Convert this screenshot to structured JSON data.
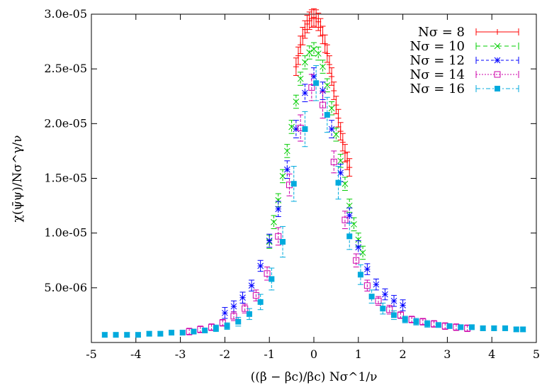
{
  "chart_data": {
    "type": "scatter",
    "title": "",
    "xlabel": "((β − βc)/βc) Nσ^1/ν",
    "ylabel": "χ(ψ̄ψ)/Nσ^γ/ν",
    "xlim": [
      -5,
      5
    ],
    "ylim": [
      0,
      3e-05
    ],
    "x_ticks": [
      "-5",
      "-4",
      "-3",
      "-2",
      "-1",
      "0",
      "1",
      "2",
      "3",
      "4",
      "5"
    ],
    "y_ticks": [
      "5.0e-06",
      "1.0e-05",
      "1.5e-05",
      "2.0e-05",
      "2.5e-05",
      "3.0e-05"
    ],
    "grid": false,
    "legend_position": "top-right",
    "series": [
      {
        "name": "Nσ = 8",
        "color": "#ff0000",
        "marker": "plus",
        "x": [
          -0.4,
          -0.35,
          -0.3,
          -0.25,
          -0.2,
          -0.15,
          -0.1,
          -0.05,
          0.0,
          0.05,
          0.1,
          0.15,
          0.2,
          0.25,
          0.3,
          0.35,
          0.4,
          0.45,
          0.5,
          0.55,
          0.6,
          0.65,
          0.7,
          0.75,
          0.8
        ],
        "y": [
          2.52e-05,
          2.62e-05,
          2.72e-05,
          2.8e-05,
          2.86e-05,
          2.91e-05,
          2.94e-05,
          2.96e-05,
          2.97e-05,
          2.96e-05,
          2.93e-05,
          2.88e-05,
          2.81e-05,
          2.73e-05,
          2.64e-05,
          2.54e-05,
          2.43e-05,
          2.3e-05,
          2.17e-05,
          2.05e-05,
          1.93e-05,
          1.83e-05,
          1.73e-05,
          1.66e-05,
          1.6e-05
        ],
        "err": [
          8e-07,
          8e-07,
          8e-07,
          8e-07,
          8e-07,
          8e-07,
          8e-07,
          8e-07,
          8e-07,
          8e-07,
          8e-07,
          8e-07,
          8e-07,
          8e-07,
          8e-07,
          8e-07,
          8e-07,
          8e-07,
          8e-07,
          8e-07,
          8e-07,
          8e-07,
          8e-07,
          8e-07,
          8e-07
        ]
      },
      {
        "name": "Nσ = 10",
        "color": "#00cc00",
        "marker": "cross",
        "x": [
          -1.0,
          -0.9,
          -0.8,
          -0.7,
          -0.6,
          -0.5,
          -0.4,
          -0.3,
          -0.2,
          -0.1,
          0.0,
          0.1,
          0.2,
          0.3,
          0.4,
          0.5,
          0.6,
          0.7,
          0.8,
          0.9,
          1.0,
          1.1
        ],
        "y": [
          9.2e-06,
          1.1e-05,
          1.3e-05,
          1.52e-05,
          1.75e-05,
          1.97e-05,
          2.2e-05,
          2.41e-05,
          2.56e-05,
          2.65e-05,
          2.68e-05,
          2.64e-05,
          2.52e-05,
          2.35e-05,
          2.14e-05,
          1.9e-05,
          1.66e-05,
          1.45e-05,
          1.25e-05,
          1.08e-05,
          9.4e-06,
          8.2e-06
        ],
        "err": [
          6e-07,
          6e-07,
          6e-07,
          6e-07,
          6e-07,
          6e-07,
          6e-07,
          6e-07,
          6e-07,
          6e-07,
          6e-07,
          6e-07,
          6e-07,
          6e-07,
          6e-07,
          6e-07,
          6e-07,
          6e-07,
          6e-07,
          6e-07,
          6e-07,
          6e-07
        ]
      },
      {
        "name": "Nσ = 12",
        "color": "#0000ff",
        "marker": "star",
        "x": [
          -2.0,
          -1.8,
          -1.6,
          -1.4,
          -1.2,
          -1.0,
          -0.8,
          -0.6,
          -0.4,
          -0.2,
          0.0,
          0.2,
          0.4,
          0.6,
          0.8,
          1.0,
          1.2,
          1.4,
          1.6,
          1.8,
          2.0
        ],
        "y": [
          2.7e-06,
          3.3e-06,
          4.1e-06,
          5.2e-06,
          7e-06,
          9.3e-06,
          1.22e-05,
          1.58e-05,
          1.95e-05,
          2.28e-05,
          2.43e-05,
          2.3e-05,
          1.95e-05,
          1.55e-05,
          1.16e-05,
          8.7e-06,
          6.7e-06,
          5.3e-06,
          4.4e-06,
          3.8e-06,
          3.4e-06
        ],
        "err": [
          5e-07,
          5e-07,
          5e-07,
          5e-07,
          5e-07,
          6e-07,
          7e-07,
          8e-07,
          8e-07,
          8e-07,
          8e-07,
          8e-07,
          8e-07,
          8e-07,
          7e-07,
          6e-07,
          5e-07,
          5e-07,
          5e-07,
          5e-07,
          5e-07
        ]
      },
      {
        "name": "Nσ = 14",
        "color": "#cc00aa",
        "marker": "square-open",
        "x": [
          -2.8,
          -2.55,
          -2.3,
          -2.05,
          -1.8,
          -1.55,
          -1.3,
          -1.05,
          -0.8,
          -0.55,
          -0.3,
          -0.05,
          0.2,
          0.45,
          0.7,
          0.95,
          1.2,
          1.45,
          1.7,
          1.95,
          2.2,
          2.45,
          2.7,
          2.95,
          3.2,
          3.45
        ],
        "y": [
          1e-06,
          1.2e-06,
          1.4e-06,
          1.8e-06,
          2.4e-06,
          3.1e-06,
          4.3e-06,
          6.3e-06,
          9.7e-06,
          1.44e-05,
          1.96e-05,
          2.33e-05,
          2.17e-05,
          1.65e-05,
          1.12e-05,
          7.5e-06,
          5.2e-06,
          3.8e-06,
          3e-06,
          2.5e-06,
          2.1e-06,
          1.9e-06,
          1.7e-06,
          1.5e-06,
          1.4e-06,
          1.3e-06
        ],
        "err": [
          3e-07,
          3e-07,
          3e-07,
          3e-07,
          4e-07,
          4e-07,
          5e-07,
          6e-07,
          8e-07,
          1e-06,
          1.2e-06,
          1.2e-06,
          1.2e-06,
          1e-06,
          8e-07,
          6e-07,
          5e-07,
          4e-07,
          4e-07,
          3e-07,
          3e-07,
          3e-07,
          3e-07,
          3e-07,
          3e-07,
          3e-07
        ]
      },
      {
        "name": "Nσ = 16",
        "color": "#00aadd",
        "marker": "square-filled",
        "x": [
          -4.7,
          -4.45,
          -4.2,
          -3.95,
          -3.7,
          -3.45,
          -3.2,
          -2.95,
          -2.7,
          -2.45,
          -2.2,
          -1.95,
          -1.7,
          -1.45,
          -1.2,
          -0.95,
          -0.7,
          -0.45,
          -0.2,
          0.05,
          0.3,
          0.55,
          0.8,
          1.05,
          1.3,
          1.55,
          1.8,
          2.05,
          2.3,
          2.55,
          2.8,
          3.05,
          3.3,
          3.55,
          3.8,
          4.05,
          4.3,
          4.55,
          4.7
        ],
        "y": [
          7e-07,
          7e-07,
          7e-07,
          7e-07,
          8e-07,
          8e-07,
          9e-07,
          9e-07,
          1e-06,
          1.1e-06,
          1.3e-06,
          1.5e-06,
          1.9e-06,
          2.6e-06,
          3.7e-06,
          5.8e-06,
          9.2e-06,
          1.45e-05,
          1.95e-05,
          2.37e-05,
          2.08e-05,
          1.46e-05,
          9.7e-06,
          6.2e-06,
          4.2e-06,
          3.1e-06,
          2.5e-06,
          2.1e-06,
          1.9e-06,
          1.7e-06,
          1.6e-06,
          1.5e-06,
          1.4e-06,
          1.4e-06,
          1.3e-06,
          1.3e-06,
          1.3e-06,
          1.2e-06,
          1.2e-06
        ],
        "err": [
          2e-07,
          2e-07,
          2e-07,
          2e-07,
          2e-07,
          2e-07,
          2e-07,
          2e-07,
          2e-07,
          2e-07,
          3e-07,
          3e-07,
          4e-07,
          5e-07,
          7e-07,
          1e-06,
          1.4e-06,
          1.6e-06,
          1.6e-06,
          1.6e-06,
          1.6e-06,
          1.5e-06,
          1.2e-06,
          9e-07,
          6e-07,
          5e-07,
          4e-07,
          3e-07,
          3e-07,
          3e-07,
          2e-07,
          2e-07,
          2e-07,
          2e-07,
          2e-07,
          2e-07,
          2e-07,
          2e-07,
          2e-07
        ]
      }
    ]
  }
}
